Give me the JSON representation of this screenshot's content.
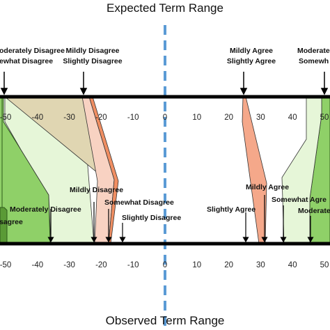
{
  "titles": {
    "top": "Expected Term Range",
    "bottom": "Observed Term Range"
  },
  "axis": {
    "ticks": [
      -50,
      -40,
      -30,
      -20,
      -10,
      0,
      10,
      20,
      30,
      40,
      50
    ],
    "tick_labels": [
      "-50",
      "-40",
      "-30",
      "-20",
      "-10",
      "0",
      "10",
      "20",
      "30",
      "40",
      "50"
    ]
  },
  "top_labels": {
    "left_outer_1": "oderately Disagree",
    "left_outer_2": "ewhat Disagree",
    "left_mid_1": "Mildly Disagree",
    "left_mid_2": "Slightly Disagree",
    "right_mid_1": "Mildly Agree",
    "right_mid_2": "Slightly Agree",
    "right_outer_1": "Moderatel",
    "right_outer_2": "Somewh"
  },
  "mid_labels": {
    "mildly_disagree": "Mildly Disagree",
    "moderately_disagree": "Moderately Disagree",
    "somewhat_disagree": "Somewhat Disagree",
    "slightly_disagree": "Slightly Disagree",
    "disagree_stub": "sagree",
    "mildly_agree": "Mildly Agree",
    "slightly_agree": "Slightly Agree",
    "somewhat_agree": "Somewhat Agre",
    "moderately_agree": "Moderate"
  },
  "colors": {
    "zero_line": "#5b9bd5",
    "strong_green": "#8fd068",
    "dark_green": "#5a9a36",
    "light_green": "#e6f6d8",
    "tan": "#e0d6b2",
    "orange": "#f08e62",
    "light_orange": "#f8d2c2"
  }
}
